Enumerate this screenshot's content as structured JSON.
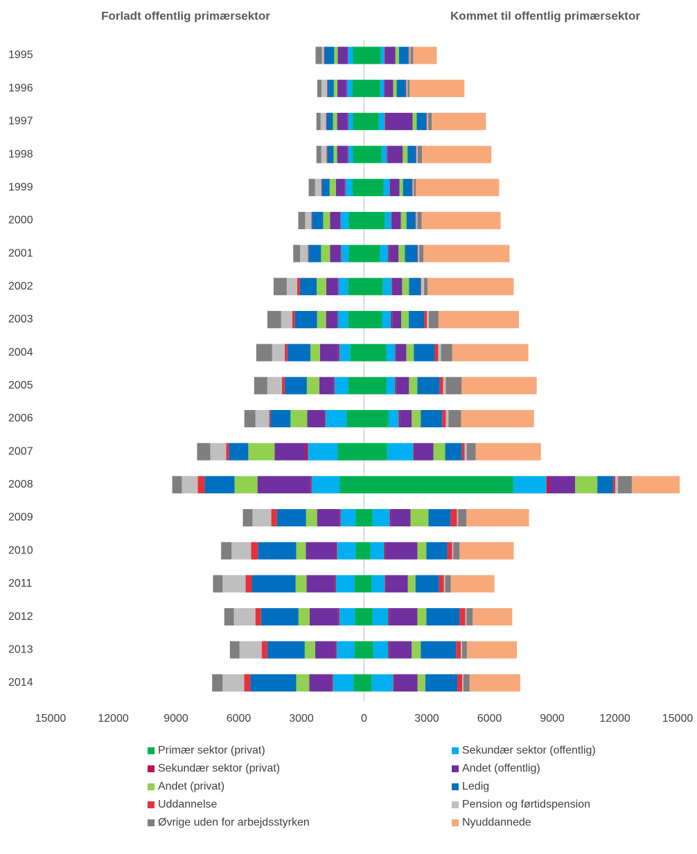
{
  "chart_data": {
    "type": "diverging_bar",
    "left_title": "Forladt offentlig primærsektor",
    "right_title": "Kommet til offentlig primærsektor",
    "categories": [
      "1995",
      "1996",
      "1997",
      "1998",
      "1999",
      "2000",
      "2001",
      "2002",
      "2003",
      "2004",
      "2005",
      "2006",
      "2007",
      "2008",
      "2009",
      "2010",
      "2011",
      "2012",
      "2013",
      "2014"
    ],
    "xlim": [
      -15000,
      15000
    ],
    "xticks": [
      {
        "value": -15000,
        "label": "15000"
      },
      {
        "value": -12000,
        "label": "12000"
      },
      {
        "value": -9000,
        "label": "9000"
      },
      {
        "value": -6000,
        "label": "6000"
      },
      {
        "value": -3000,
        "label": "3000"
      },
      0,
      3000,
      6000,
      9000,
      12000,
      15000
    ],
    "series": [
      {
        "name": "Primær sektor (privat)",
        "color": "#00b050",
        "left_values": [
          530,
          560,
          530,
          530,
          560,
          730,
          730,
          760,
          760,
          660,
          760,
          830,
          1260,
          1160,
          400,
          400,
          460,
          430,
          460,
          500
        ],
        "right_values": [
          800,
          760,
          700,
          830,
          930,
          1000,
          760,
          900,
          860,
          1060,
          1060,
          1160,
          1100,
          7140,
          400,
          300,
          370,
          400,
          430,
          370
        ]
      },
      {
        "name": "Sekundær sektor (offentlig)",
        "color": "#00b0f0",
        "left_values": [
          250,
          260,
          230,
          230,
          330,
          400,
          370,
          460,
          500,
          530,
          660,
          1030,
          1430,
          1360,
          730,
          900,
          900,
          760,
          860,
          1000
        ],
        "right_values": [
          170,
          200,
          300,
          260,
          300,
          300,
          400,
          430,
          430,
          430,
          430,
          500,
          1260,
          1590,
          830,
          660,
          630,
          760,
          730,
          1030
        ]
      },
      {
        "name": "Sekundær sektor (privat)",
        "color": "#c0144c",
        "left_values": [
          30,
          30,
          30,
          30,
          30,
          30,
          30,
          30,
          30,
          60,
          60,
          60,
          130,
          60,
          60,
          60,
          60,
          60,
          60,
          60
        ],
        "right_values": [
          30,
          30,
          60,
          30,
          30,
          30,
          60,
          60,
          60,
          30,
          60,
          60,
          60,
          170,
          60,
          60,
          60,
          60,
          60,
          60
        ]
      },
      {
        "name": "Andet (offentlig)",
        "color": "#7030a0",
        "left_values": [
          450,
          430,
          500,
          500,
          430,
          470,
          500,
          560,
          530,
          860,
          660,
          800,
          1460,
          2520,
          1060,
          1430,
          1330,
          1360,
          960,
          1060
        ],
        "right_values": [
          500,
          400,
          1260,
          730,
          430,
          430,
          430,
          430,
          430,
          500,
          600,
          560,
          900,
          1200,
          930,
          1530,
          1030,
          1330,
          1060,
          1100
        ]
      },
      {
        "name": "Andet (privat)",
        "color": "#92d050",
        "left_values": [
          170,
          170,
          200,
          170,
          300,
          330,
          430,
          460,
          430,
          460,
          600,
          800,
          1260,
          1100,
          530,
          460,
          530,
          530,
          500,
          630
        ],
        "right_values": [
          170,
          170,
          200,
          230,
          170,
          270,
          300,
          330,
          360,
          360,
          400,
          430,
          560,
          1060,
          860,
          430,
          370,
          430,
          430,
          370
        ]
      },
      {
        "name": "Ledig",
        "color": "#0070c0",
        "left_values": [
          460,
          300,
          300,
          300,
          370,
          530,
          600,
          800,
          1060,
          1100,
          1060,
          960,
          930,
          1430,
          1390,
          1830,
          2090,
          1790,
          1790,
          2190
        ],
        "right_values": [
          460,
          430,
          460,
          400,
          430,
          430,
          600,
          560,
          730,
          1000,
          1060,
          1030,
          800,
          760,
          1060,
          1000,
          1130,
          1590,
          1690,
          1530
        ]
      },
      {
        "name": "Uddannelse",
        "color": "#e8303a",
        "left_values": [
          30,
          30,
          30,
          30,
          30,
          30,
          30,
          130,
          130,
          130,
          130,
          60,
          130,
          330,
          270,
          330,
          300,
          270,
          270,
          300
        ],
        "right_values": [
          30,
          30,
          30,
          30,
          30,
          30,
          30,
          30,
          130,
          170,
          170,
          170,
          130,
          100,
          300,
          230,
          230,
          270,
          230,
          230
        ]
      },
      {
        "name": "Pension og førtidspension",
        "color": "#bfbfbf",
        "left_values": [
          100,
          260,
          260,
          260,
          300,
          300,
          370,
          500,
          530,
          600,
          700,
          660,
          760,
          760,
          900,
          930,
          1100,
          1030,
          1060,
          1030
        ],
        "right_values": [
          60,
          60,
          60,
          60,
          60,
          60,
          60,
          130,
          100,
          130,
          130,
          130,
          100,
          130,
          60,
          60,
          60,
          60,
          60,
          60
        ]
      },
      {
        "name": "Øvrige uden for arbejdsstyrken",
        "color": "#7f7f7f",
        "left_values": [
          300,
          200,
          200,
          230,
          300,
          330,
          330,
          630,
          660,
          760,
          630,
          530,
          630,
          460,
          460,
          500,
          460,
          460,
          460,
          500
        ],
        "right_values": [
          130,
          100,
          170,
          200,
          100,
          200,
          200,
          170,
          460,
          530,
          760,
          600,
          430,
          660,
          400,
          300,
          270,
          300,
          230,
          300
        ]
      },
      {
        "name": "Nyuddannede",
        "color": "#f8a97b",
        "right_values": [
          1130,
          2620,
          2590,
          3320,
          3980,
          3780,
          4120,
          4120,
          3850,
          3650,
          3590,
          3490,
          3120,
          2290,
          2990,
          2590,
          2090,
          1890,
          2390,
          2420
        ]
      }
    ]
  }
}
